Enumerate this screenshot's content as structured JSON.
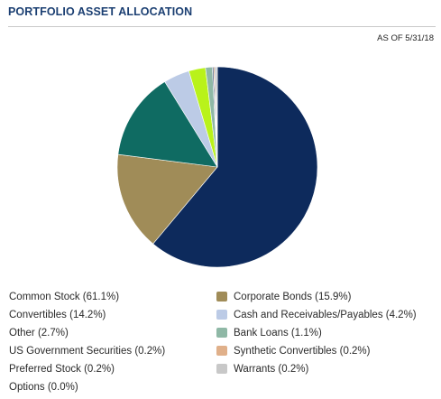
{
  "header": {
    "title": "PORTFOLIO ASSET ALLOCATION",
    "as_of": "AS OF 5/31/18"
  },
  "chart_data": {
    "type": "pie",
    "slices": [
      {
        "label": "Common Stock (61.1%)",
        "name": "Common Stock",
        "value": 61.1,
        "color": "#0d2a5c",
        "col": "left",
        "row": 0
      },
      {
        "label": "Corporate Bonds (15.9%)",
        "name": "Corporate Bonds",
        "value": 15.9,
        "color": "#a08c58",
        "col": "right",
        "row": 0
      },
      {
        "label": "Convertibles (14.2%)",
        "name": "Convertibles",
        "value": 14.2,
        "color": "#0f6b62",
        "col": "left",
        "row": 1
      },
      {
        "label": "Cash and Receivables/Payables (4.2%)",
        "name": "Cash and Receivables/Payables",
        "value": 4.2,
        "color": "#bccbe6",
        "col": "right",
        "row": 1
      },
      {
        "label": "Other (2.7%)",
        "name": "Other",
        "value": 2.7,
        "color": "#b9f21a",
        "col": "left",
        "row": 2
      },
      {
        "label": "Bank Loans (1.1%)",
        "name": "Bank Loans",
        "value": 1.1,
        "color": "#8fb8a6",
        "col": "right",
        "row": 2
      },
      {
        "label": "US Government Securities (0.2%)",
        "name": "US Government Securities",
        "value": 0.2,
        "color": "#22406e",
        "col": "left",
        "row": 3
      },
      {
        "label": "Synthetic Convertibles (0.2%)",
        "name": "Synthetic Convertibles",
        "value": 0.2,
        "color": "#e0b08a",
        "col": "right",
        "row": 3
      },
      {
        "label": "Preferred Stock (0.2%)",
        "name": "Preferred Stock",
        "value": 0.2,
        "color": "#7a8a9a",
        "col": "left",
        "row": 4
      },
      {
        "label": "Warrants (0.2%)",
        "name": "Warrants",
        "value": 0.2,
        "color": "#c8c8c8",
        "col": "right",
        "row": 4
      },
      {
        "label": "Options (0.0%)",
        "name": "Options",
        "value": 0.0,
        "color": "#999999",
        "col": "left",
        "row": 5
      }
    ],
    "pie_order": [
      "Common Stock",
      "Corporate Bonds",
      "Convertibles",
      "Cash and Receivables/Payables",
      "Other",
      "Bank Loans",
      "US Government Securities",
      "Synthetic Convertibles",
      "Preferred Stock",
      "Warrants",
      "Options"
    ],
    "legend_placement": "bottom",
    "left_column_has_swatches": false
  }
}
